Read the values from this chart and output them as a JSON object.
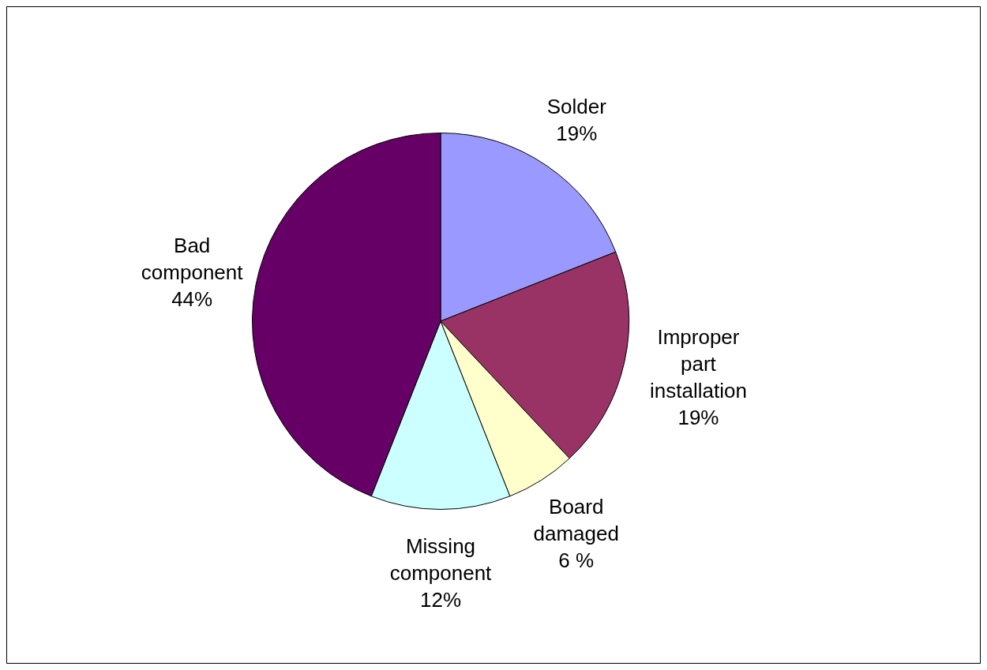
{
  "chart_data": {
    "type": "pie",
    "categories": [
      "Solder",
      "Improper part installation",
      "Board damaged",
      "Missing component",
      "Bad component"
    ],
    "values": [
      19,
      19,
      6,
      12,
      44
    ],
    "value_labels": [
      "19%",
      "19%",
      "6 %",
      "12%",
      "44%"
    ],
    "colors": [
      "#9999ff",
      "#993366",
      "#ffffcc",
      "#ccffff",
      "#660066"
    ],
    "legend": false
  }
}
